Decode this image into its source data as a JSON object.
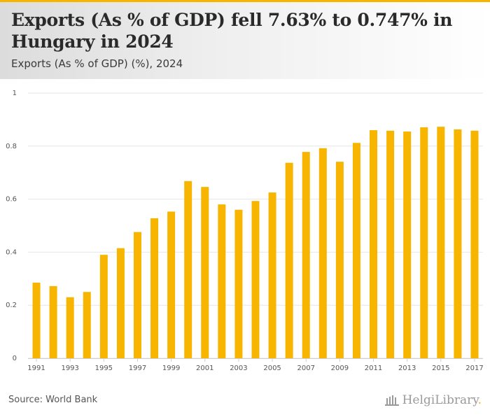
{
  "header": {
    "title": "Exports (As % of GDP) fell 7.63% to 0.747% in Hungary in 2024",
    "subtitle": "Exports (As % of GDP) (%), 2024"
  },
  "footer": {
    "source": "Source: World Bank",
    "logo_text": "HelgiLibrary",
    "logo_dot": "."
  },
  "colors": {
    "bar": "#f7b500",
    "grid": "#e6e6e6",
    "axis_text": "#555555"
  },
  "chart_data": {
    "type": "bar",
    "title": "Exports (As % of GDP) (%), 2024",
    "xlabel": "",
    "ylabel": "",
    "ylim": [
      0,
      1
    ],
    "yticks": [
      0,
      0.2,
      0.4,
      0.6,
      0.8,
      1
    ],
    "ytick_labels": [
      "0",
      "0.2",
      "0.4",
      "0.6",
      "0.8",
      "1"
    ],
    "categories": [
      "1991",
      "1992",
      "1993",
      "1994",
      "1995",
      "1996",
      "1997",
      "1998",
      "1999",
      "2000",
      "2001",
      "2002",
      "2003",
      "2004",
      "2005",
      "2006",
      "2007",
      "2008",
      "2009",
      "2010",
      "2011",
      "2012",
      "2013",
      "2014",
      "2015",
      "2016",
      "2017"
    ],
    "xtick_labels": [
      "1991",
      "1993",
      "1995",
      "1997",
      "1999",
      "2001",
      "2003",
      "2005",
      "2007",
      "2009",
      "2011",
      "2013",
      "2015",
      "2017"
    ],
    "values": [
      0.285,
      0.272,
      0.23,
      0.25,
      0.39,
      0.415,
      0.476,
      0.528,
      0.553,
      0.668,
      0.646,
      0.58,
      0.56,
      0.593,
      0.625,
      0.737,
      0.778,
      0.792,
      0.741,
      0.812,
      0.86,
      0.858,
      0.855,
      0.871,
      0.873,
      0.863,
      0.858
    ]
  }
}
